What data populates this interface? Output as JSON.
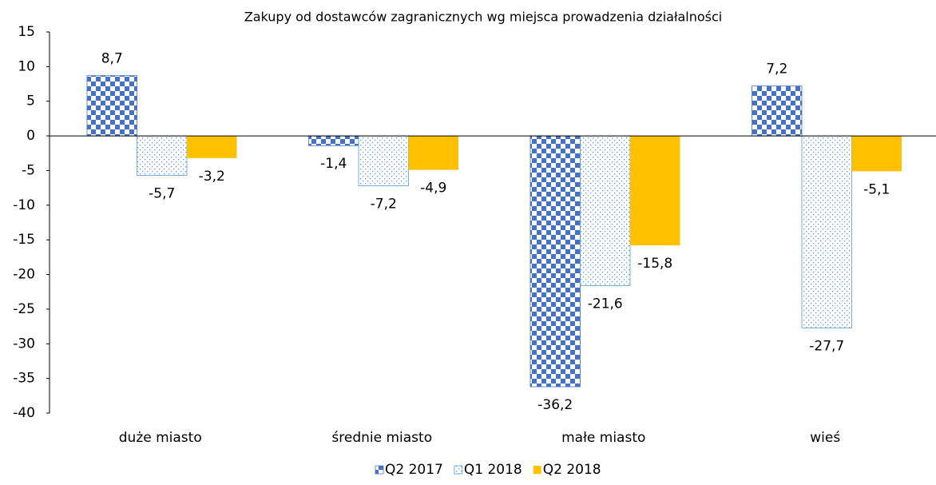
{
  "chart_data": {
    "type": "bar",
    "title": "Zakupy od dostawców zagranicznych wg miejsca prowadzenia działalności",
    "categories": [
      "duże miasto",
      "średnie miasto",
      "małe miasto",
      "wieś"
    ],
    "series": [
      {
        "name": "Q2 2017",
        "color": "#4472c4",
        "pattern": "checker",
        "values": [
          8.7,
          -1.4,
          -36.2,
          7.2
        ],
        "value_labels": [
          "8,7",
          "-1,4",
          "-36,2",
          "7,2"
        ]
      },
      {
        "name": "Q1 2018",
        "color": "#5b9bd5",
        "pattern": "dots",
        "values": [
          -5.7,
          -7.2,
          -21.6,
          -27.7
        ],
        "value_labels": [
          "-5,7",
          "-7,2",
          "-21,6",
          "-27,7"
        ]
      },
      {
        "name": "Q2 2018",
        "color": "#ffc000",
        "pattern": "solid",
        "values": [
          -3.2,
          -4.9,
          -15.8,
          -5.1
        ],
        "value_labels": [
          "-3,2",
          "-4,9",
          "-15,8",
          "-5,1"
        ]
      }
    ],
    "ylim": [
      -40,
      15
    ],
    "yticks": [
      15,
      10,
      5,
      0,
      -5,
      -10,
      -15,
      -20,
      -25,
      -30,
      -35,
      -40
    ],
    "grid": false,
    "legend": "bottom"
  }
}
